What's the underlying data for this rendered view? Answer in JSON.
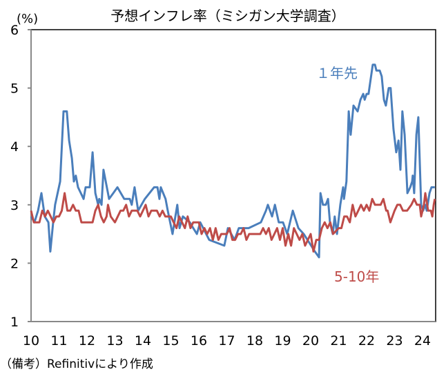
{
  "chart_data": {
    "type": "line",
    "title": "予想インフレ率（ミシガン大学調査）",
    "ylabel": "(%)",
    "ylim": [
      1,
      6
    ],
    "xlim": [
      2010,
      2024.5
    ],
    "yticks": [
      "1",
      "2",
      "3",
      "4",
      "5",
      "6"
    ],
    "xticks": [
      "10",
      "11",
      "12",
      "13",
      "14",
      "15",
      "16",
      "17",
      "18",
      "19",
      "20",
      "21",
      "22",
      "23",
      "24"
    ],
    "grid": false,
    "note": "（備考）Refinitivにより作成",
    "series": [
      {
        "name": "１年先",
        "color": "#4a7ebb",
        "points": [
          [
            2010.0,
            2.8
          ],
          [
            2010.12,
            2.7
          ],
          [
            2010.25,
            2.9
          ],
          [
            2010.37,
            3.2
          ],
          [
            2010.49,
            2.8
          ],
          [
            2010.62,
            2.7
          ],
          [
            2010.69,
            2.2
          ],
          [
            2010.79,
            2.7
          ],
          [
            2010.86,
            3.0
          ],
          [
            2011.04,
            3.4
          ],
          [
            2011.16,
            4.6
          ],
          [
            2011.28,
            4.6
          ],
          [
            2011.36,
            4.1
          ],
          [
            2011.46,
            3.8
          ],
          [
            2011.53,
            3.4
          ],
          [
            2011.6,
            3.5
          ],
          [
            2011.68,
            3.3
          ],
          [
            2011.78,
            3.2
          ],
          [
            2011.88,
            3.1
          ],
          [
            2011.95,
            3.3
          ],
          [
            2012.1,
            3.3
          ],
          [
            2012.2,
            3.9
          ],
          [
            2012.3,
            3.2
          ],
          [
            2012.4,
            3.0
          ],
          [
            2012.44,
            3.1
          ],
          [
            2012.52,
            3.0
          ],
          [
            2012.59,
            3.6
          ],
          [
            2012.79,
            3.1
          ],
          [
            2012.94,
            3.2
          ],
          [
            2013.09,
            3.3
          ],
          [
            2013.21,
            3.2
          ],
          [
            2013.33,
            3.1
          ],
          [
            2013.53,
            3.1
          ],
          [
            2013.6,
            3.0
          ],
          [
            2013.7,
            3.3
          ],
          [
            2013.83,
            2.9
          ],
          [
            2014.07,
            3.1
          ],
          [
            2014.4,
            3.3
          ],
          [
            2014.52,
            3.3
          ],
          [
            2014.59,
            3.1
          ],
          [
            2014.64,
            3.3
          ],
          [
            2014.81,
            3.1
          ],
          [
            2014.89,
            2.9
          ],
          [
            2015.06,
            2.5
          ],
          [
            2015.16,
            2.8
          ],
          [
            2015.23,
            3.0
          ],
          [
            2015.31,
            2.6
          ],
          [
            2015.43,
            2.8
          ],
          [
            2015.68,
            2.7
          ],
          [
            2015.8,
            2.6
          ],
          [
            2015.93,
            2.5
          ],
          [
            2016.05,
            2.7
          ],
          [
            2016.37,
            2.4
          ],
          [
            2016.91,
            2.3
          ],
          [
            2017.04,
            2.6
          ],
          [
            2017.28,
            2.4
          ],
          [
            2017.43,
            2.6
          ],
          [
            2017.78,
            2.6
          ],
          [
            2018.22,
            2.7
          ],
          [
            2018.4,
            2.9
          ],
          [
            2018.47,
            3.0
          ],
          [
            2018.62,
            2.8
          ],
          [
            2018.72,
            3.0
          ],
          [
            2018.86,
            2.7
          ],
          [
            2019.01,
            2.7
          ],
          [
            2019.16,
            2.5
          ],
          [
            2019.36,
            2.9
          ],
          [
            2019.56,
            2.6
          ],
          [
            2019.75,
            2.5
          ],
          [
            2020.15,
            2.2
          ],
          [
            2020.3,
            2.1
          ],
          [
            2020.35,
            3.2
          ],
          [
            2020.44,
            3.0
          ],
          [
            2020.54,
            3.0
          ],
          [
            2020.62,
            3.1
          ],
          [
            2020.69,
            2.7
          ],
          [
            2020.79,
            2.5
          ],
          [
            2020.86,
            2.8
          ],
          [
            2020.94,
            2.5
          ],
          [
            2021.06,
            3.0
          ],
          [
            2021.16,
            3.3
          ],
          [
            2021.19,
            3.1
          ],
          [
            2021.28,
            3.4
          ],
          [
            2021.36,
            4.6
          ],
          [
            2021.43,
            4.2
          ],
          [
            2021.53,
            4.7
          ],
          [
            2021.68,
            4.6
          ],
          [
            2021.78,
            4.8
          ],
          [
            2021.88,
            4.9
          ],
          [
            2021.93,
            4.8
          ],
          [
            2022.0,
            4.9
          ],
          [
            2022.07,
            4.9
          ],
          [
            2022.22,
            5.4
          ],
          [
            2022.3,
            5.4
          ],
          [
            2022.35,
            5.3
          ],
          [
            2022.47,
            5.3
          ],
          [
            2022.54,
            5.2
          ],
          [
            2022.62,
            4.8
          ],
          [
            2022.69,
            4.7
          ],
          [
            2022.79,
            5.0
          ],
          [
            2022.86,
            5.0
          ],
          [
            2022.96,
            4.3
          ],
          [
            2023.06,
            3.9
          ],
          [
            2023.14,
            4.1
          ],
          [
            2023.21,
            3.6
          ],
          [
            2023.28,
            4.6
          ],
          [
            2023.36,
            4.2
          ],
          [
            2023.46,
            3.2
          ],
          [
            2023.56,
            3.3
          ],
          [
            2023.63,
            3.4
          ],
          [
            2023.65,
            3.5
          ],
          [
            2023.7,
            3.2
          ],
          [
            2023.78,
            4.2
          ],
          [
            2023.85,
            4.5
          ],
          [
            2023.95,
            3.0
          ],
          [
            2024.02,
            2.9
          ],
          [
            2024.1,
            3.0
          ],
          [
            2024.15,
            2.9
          ],
          [
            2024.25,
            3.2
          ],
          [
            2024.32,
            3.3
          ],
          [
            2024.44,
            3.3
          ]
        ]
      },
      {
        "name": "5-10年",
        "color": "#be4b48",
        "points": [
          [
            2010.0,
            2.9
          ],
          [
            2010.1,
            2.7
          ],
          [
            2010.3,
            2.7
          ],
          [
            2010.4,
            2.9
          ],
          [
            2010.5,
            2.8
          ],
          [
            2010.6,
            2.9
          ],
          [
            2010.7,
            2.8
          ],
          [
            2010.8,
            2.7
          ],
          [
            2010.9,
            2.8
          ],
          [
            2011.0,
            2.8
          ],
          [
            2011.1,
            2.9
          ],
          [
            2011.2,
            3.2
          ],
          [
            2011.3,
            2.9
          ],
          [
            2011.4,
            2.9
          ],
          [
            2011.5,
            3.0
          ],
          [
            2011.6,
            2.9
          ],
          [
            2011.7,
            2.9
          ],
          [
            2011.8,
            2.7
          ],
          [
            2012.0,
            2.7
          ],
          [
            2012.2,
            2.7
          ],
          [
            2012.3,
            2.9
          ],
          [
            2012.4,
            3.0
          ],
          [
            2012.5,
            2.8
          ],
          [
            2012.6,
            2.7
          ],
          [
            2012.7,
            2.8
          ],
          [
            2012.75,
            3.0
          ],
          [
            2012.85,
            2.8
          ],
          [
            2013.0,
            2.7
          ],
          [
            2013.2,
            2.9
          ],
          [
            2013.3,
            2.9
          ],
          [
            2013.4,
            3.0
          ],
          [
            2013.5,
            2.8
          ],
          [
            2013.6,
            2.9
          ],
          [
            2013.8,
            2.9
          ],
          [
            2013.9,
            2.8
          ],
          [
            2014.0,
            2.9
          ],
          [
            2014.1,
            3.0
          ],
          [
            2014.2,
            2.8
          ],
          [
            2014.3,
            2.9
          ],
          [
            2014.5,
            2.9
          ],
          [
            2014.6,
            2.8
          ],
          [
            2014.7,
            2.9
          ],
          [
            2014.8,
            2.8
          ],
          [
            2015.0,
            2.8
          ],
          [
            2015.1,
            2.7
          ],
          [
            2015.2,
            2.6
          ],
          [
            2015.3,
            2.8
          ],
          [
            2015.4,
            2.7
          ],
          [
            2015.5,
            2.6
          ],
          [
            2015.6,
            2.8
          ],
          [
            2015.7,
            2.6
          ],
          [
            2015.8,
            2.7
          ],
          [
            2016.0,
            2.7
          ],
          [
            2016.1,
            2.5
          ],
          [
            2016.2,
            2.6
          ],
          [
            2016.3,
            2.5
          ],
          [
            2016.4,
            2.6
          ],
          [
            2016.5,
            2.4
          ],
          [
            2016.6,
            2.6
          ],
          [
            2016.7,
            2.4
          ],
          [
            2016.8,
            2.5
          ],
          [
            2017.0,
            2.5
          ],
          [
            2017.1,
            2.6
          ],
          [
            2017.2,
            2.4
          ],
          [
            2017.3,
            2.4
          ],
          [
            2017.4,
            2.5
          ],
          [
            2017.5,
            2.5
          ],
          [
            2017.6,
            2.6
          ],
          [
            2017.7,
            2.4
          ],
          [
            2017.8,
            2.5
          ],
          [
            2018.0,
            2.5
          ],
          [
            2018.2,
            2.5
          ],
          [
            2018.3,
            2.6
          ],
          [
            2018.4,
            2.5
          ],
          [
            2018.5,
            2.6
          ],
          [
            2018.6,
            2.4
          ],
          [
            2018.7,
            2.5
          ],
          [
            2018.8,
            2.6
          ],
          [
            2018.9,
            2.4
          ],
          [
            2019.0,
            2.6
          ],
          [
            2019.1,
            2.3
          ],
          [
            2019.2,
            2.5
          ],
          [
            2019.3,
            2.3
          ],
          [
            2019.4,
            2.6
          ],
          [
            2019.5,
            2.5
          ],
          [
            2019.6,
            2.4
          ],
          [
            2019.7,
            2.5
          ],
          [
            2019.8,
            2.3
          ],
          [
            2020.0,
            2.5
          ],
          [
            2020.1,
            2.2
          ],
          [
            2020.2,
            2.4
          ],
          [
            2020.3,
            2.4
          ],
          [
            2020.4,
            2.6
          ],
          [
            2020.5,
            2.7
          ],
          [
            2020.6,
            2.6
          ],
          [
            2020.7,
            2.7
          ],
          [
            2020.8,
            2.5
          ],
          [
            2021.0,
            2.6
          ],
          [
            2021.1,
            2.6
          ],
          [
            2021.2,
            2.8
          ],
          [
            2021.3,
            2.8
          ],
          [
            2021.4,
            2.7
          ],
          [
            2021.5,
            3.0
          ],
          [
            2021.6,
            2.8
          ],
          [
            2021.7,
            2.9
          ],
          [
            2021.8,
            3.0
          ],
          [
            2021.9,
            2.9
          ],
          [
            2022.0,
            3.0
          ],
          [
            2022.1,
            2.9
          ],
          [
            2022.2,
            3.1
          ],
          [
            2022.3,
            3.0
          ],
          [
            2022.5,
            3.0
          ],
          [
            2022.6,
            3.1
          ],
          [
            2022.7,
            2.9
          ],
          [
            2022.75,
            2.9
          ],
          [
            2022.85,
            2.7
          ],
          [
            2023.0,
            2.9
          ],
          [
            2023.1,
            3.0
          ],
          [
            2023.2,
            3.0
          ],
          [
            2023.3,
            2.9
          ],
          [
            2023.45,
            2.9
          ],
          [
            2023.6,
            3.0
          ],
          [
            2023.7,
            3.1
          ],
          [
            2023.8,
            3.0
          ],
          [
            2023.9,
            3.0
          ],
          [
            2023.95,
            2.8
          ],
          [
            2024.05,
            3.0
          ],
          [
            2024.1,
            3.2
          ],
          [
            2024.2,
            2.9
          ],
          [
            2024.3,
            2.9
          ],
          [
            2024.35,
            2.8
          ],
          [
            2024.4,
            3.0
          ],
          [
            2024.44,
            3.1
          ]
        ]
      }
    ]
  }
}
